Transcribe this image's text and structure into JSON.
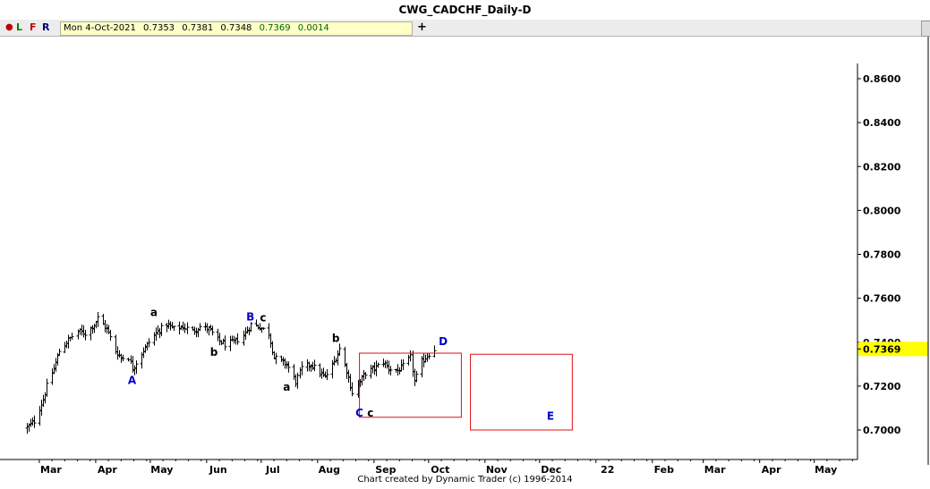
{
  "window": {
    "title": "CWG_CADCHF_Daily-D"
  },
  "toolbar": {
    "buttons": [
      "L",
      "F",
      "R"
    ],
    "quote": {
      "date": "Mon 4-Oct-2021",
      "open": "0.7353",
      "high": "0.7381",
      "low": "0.7348",
      "close": "0.7369",
      "change": "0.0014"
    },
    "add_label": "+"
  },
  "footer": {
    "credit": "Chart created by Dynamic Trader  (c) 1996-2014"
  },
  "colors": {
    "price_tag": "#ffff00",
    "box": "#e01010",
    "wave_label_major": "#0000cc",
    "wave_label_minor": "#000000",
    "quote_change": "#006400"
  },
  "chart_data": {
    "type": "ohlc",
    "title": "CWG_CADCHF_Daily-D",
    "y_axis": {
      "side": "right",
      "ticks": [
        "0.8600",
        "0.8400",
        "0.8200",
        "0.8000",
        "0.7800",
        "0.7600",
        "0.7400",
        "0.7200",
        "0.7000"
      ],
      "tick_values": [
        0.86,
        0.84,
        0.82,
        0.8,
        0.78,
        0.76,
        0.74,
        0.72,
        0.7
      ],
      "range": [
        0.6875,
        0.868
      ]
    },
    "x_axis": {
      "labels": [
        "Mar",
        "Apr",
        "May",
        "Jun",
        "Jul",
        "Aug",
        "Sep",
        "Oct",
        "Nov",
        "Dec",
        "22",
        "Feb",
        "Mar",
        "Apr",
        "May"
      ]
    },
    "last_price": "0.7369",
    "price_anchors": [
      [
        "2021-02-22",
        0.701
      ],
      [
        "2021-02-26",
        0.704
      ],
      [
        "2021-03-03",
        0.714
      ],
      [
        "2021-03-05",
        0.72
      ],
      [
        "2021-03-09",
        0.728
      ],
      [
        "2021-03-12",
        0.736
      ],
      [
        "2021-03-17",
        0.741
      ],
      [
        "2021-03-22",
        0.745
      ],
      [
        "2021-03-26",
        0.744
      ],
      [
        "2021-03-31",
        0.748
      ],
      [
        "2021-04-02",
        0.751
      ],
      [
        "2021-04-07",
        0.746
      ],
      [
        "2021-04-12",
        0.736
      ],
      [
        "2021-04-15",
        0.733
      ],
      [
        "2021-04-19",
        0.733
      ],
      [
        "2021-04-21",
        0.728
      ],
      [
        "2021-04-26",
        0.735
      ],
      [
        "2021-04-30",
        0.74
      ],
      [
        "2021-05-05",
        0.745
      ],
      [
        "2021-05-10",
        0.748
      ],
      [
        "2021-05-14",
        0.746
      ],
      [
        "2021-05-19",
        0.747
      ],
      [
        "2021-05-24",
        0.745
      ],
      [
        "2021-05-28",
        0.747
      ],
      [
        "2021-06-02",
        0.746
      ],
      [
        "2021-06-07",
        0.741
      ],
      [
        "2021-06-11",
        0.739
      ],
      [
        "2021-06-16",
        0.74
      ],
      [
        "2021-06-21",
        0.743
      ],
      [
        "2021-06-25",
        0.748
      ],
      [
        "2021-06-30",
        0.747
      ],
      [
        "2021-07-05",
        0.744
      ],
      [
        "2021-07-08",
        0.733
      ],
      [
        "2021-07-12",
        0.731
      ],
      [
        "2021-07-15",
        0.73
      ],
      [
        "2021-07-20",
        0.722
      ],
      [
        "2021-07-23",
        0.728
      ],
      [
        "2021-07-28",
        0.73
      ],
      [
        "2021-08-02",
        0.726
      ],
      [
        "2021-08-05",
        0.724
      ],
      [
        "2021-08-10",
        0.731
      ],
      [
        "2021-08-13",
        0.737
      ],
      [
        "2021-08-17",
        0.727
      ],
      [
        "2021-08-20",
        0.717
      ],
      [
        "2021-08-24",
        0.722
      ],
      [
        "2021-08-27",
        0.726
      ],
      [
        "2021-09-01",
        0.728
      ],
      [
        "2021-09-06",
        0.731
      ],
      [
        "2021-09-09",
        0.728
      ],
      [
        "2021-09-14",
        0.727
      ],
      [
        "2021-09-17",
        0.729
      ],
      [
        "2021-09-21",
        0.733
      ],
      [
        "2021-09-23",
        0.722
      ],
      [
        "2021-09-27",
        0.731
      ],
      [
        "2021-09-30",
        0.734
      ],
      [
        "2021-10-04",
        0.7369
      ]
    ],
    "wave_labels": [
      {
        "text": "A",
        "date": "2021-04-21",
        "price": 0.7225,
        "color": "#0000cc"
      },
      {
        "text": "a",
        "date": "2021-05-03",
        "price": 0.7535,
        "color": "#000000"
      },
      {
        "text": "b",
        "date": "2021-06-05",
        "price": 0.7355,
        "color": "#000000"
      },
      {
        "text": "B",
        "date": "2021-06-25",
        "price": 0.7515,
        "color": "#0000cc"
      },
      {
        "text": "c",
        "date": "2021-07-02",
        "price": 0.751,
        "color": "#000000"
      },
      {
        "text": "a",
        "date": "2021-07-15",
        "price": 0.7195,
        "color": "#000000"
      },
      {
        "text": "b",
        "date": "2021-08-11",
        "price": 0.7418,
        "color": "#000000"
      },
      {
        "text": "C",
        "date": "2021-08-24",
        "price": 0.7078,
        "color": "#0000cc"
      },
      {
        "text": "c",
        "date": "2021-08-30",
        "price": 0.7078,
        "color": "#000000"
      },
      {
        "text": "D",
        "date": "2021-10-09",
        "price": 0.7403,
        "color": "#0000cc"
      },
      {
        "text": "E",
        "date": "2021-12-07",
        "price": 0.7063,
        "color": "#0000cc"
      }
    ],
    "boxes": [
      {
        "date_start": "2021-08-24",
        "date_end": "2021-10-19",
        "price_high": 0.735,
        "price_low": 0.7058
      },
      {
        "date_start": "2021-10-24",
        "date_end": "2021-12-19",
        "price_high": 0.7345,
        "price_low": 0.7
      }
    ]
  }
}
